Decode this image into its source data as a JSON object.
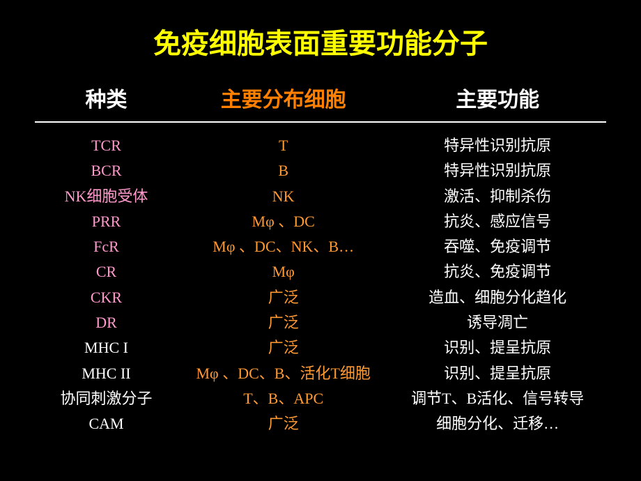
{
  "title": "免疫细胞表面重要功能分子",
  "colors": {
    "background": "#000000",
    "title": "#ffff00",
    "header_col1": "#ffffff",
    "header_col2": "#ff8000",
    "header_col3": "#ffffff",
    "col1_pink": "#ff99cc",
    "col1_white": "#ffffff",
    "col2_orange": "#ff9933",
    "col3_white": "#ffffff",
    "border": "#ffffff"
  },
  "headers": {
    "col1": "种类",
    "col2": "主要分布细胞",
    "col3": "主要功能"
  },
  "rows": [
    {
      "col1": "TCR",
      "col1_color": "#ff99cc",
      "col2": "T",
      "col3": "特异性识别抗原"
    },
    {
      "col1": "BCR",
      "col1_color": "#ff99cc",
      "col2": "B",
      "col3": "特异性识别抗原"
    },
    {
      "col1": "NK细胞受体",
      "col1_color": "#ff99cc",
      "col2": "NK",
      "col3": "激活、抑制杀伤"
    },
    {
      "col1": "PRR",
      "col1_color": "#ff99cc",
      "col2": "Mφ 、DC",
      "col3": "抗炎、感应信号"
    },
    {
      "col1": "FcR",
      "col1_color": "#ff99cc",
      "col2": "Mφ 、DC、NK、B…",
      "col3": "吞噬、免疫调节"
    },
    {
      "col1": "CR",
      "col1_color": "#ff99cc",
      "col2": "Mφ",
      "col3": "抗炎、免疫调节"
    },
    {
      "col1": "CKR",
      "col1_color": "#ff99cc",
      "col2": "广泛",
      "col3": "造血、细胞分化趋化"
    },
    {
      "col1": "DR",
      "col1_color": "#ff99cc",
      "col2": "广泛",
      "col3": "诱导凋亡"
    },
    {
      "col1": "MHC I",
      "col1_color": "#ffffff",
      "col2": "广泛",
      "col3": "识别、提呈抗原"
    },
    {
      "col1": "MHC II",
      "col1_color": "#ffffff",
      "col2": "Mφ 、DC、B、活化T细胞",
      "col3": "识别、提呈抗原"
    },
    {
      "col1": "协同刺激分子",
      "col1_color": "#ffffff",
      "col2": "T、B、APC",
      "col3": "调节T、B活化、信号转导"
    },
    {
      "col1": "CAM",
      "col1_color": "#ffffff",
      "col2": "广泛",
      "col3": "细胞分化、迁移…"
    }
  ]
}
